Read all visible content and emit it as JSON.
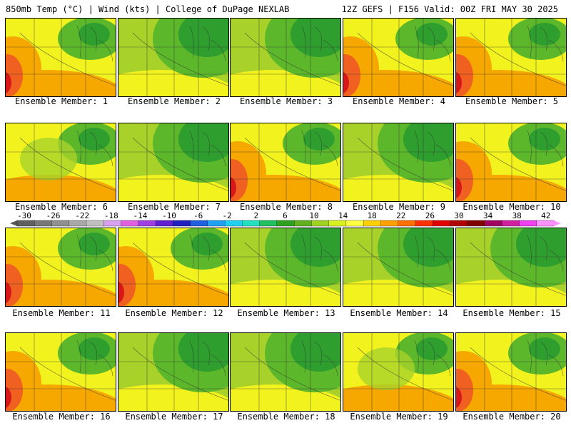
{
  "header": {
    "title_left": "850mb Temp (°C) | Wind (kts) | College of DuPage NEXLAB",
    "title_right": "12Z GEFS | F156 Valid: 00Z FRI MAY 30 2025"
  },
  "colorbar": {
    "ticks": [
      "-30",
      "-26",
      "-22",
      "-18",
      "-14",
      "-10",
      "-6",
      "-2",
      "2",
      "6",
      "10",
      "14",
      "18",
      "22",
      "26",
      "30",
      "34",
      "38",
      "42"
    ],
    "tick_values": [
      -30,
      -26,
      -22,
      -18,
      -14,
      -10,
      -6,
      -2,
      2,
      6,
      10,
      14,
      18,
      22,
      26,
      30,
      34,
      38,
      42
    ],
    "colors": [
      "#606060",
      "#787878",
      "#909090",
      "#a8a8a8",
      "#c0c0c0",
      "#d8a0f0",
      "#e060e0",
      "#a040e0",
      "#6020d0",
      "#2020c0",
      "#2060e0",
      "#20a0f0",
      "#20d0f0",
      "#20e0c0",
      "#20c060",
      "#30a020",
      "#60b020",
      "#a0d020",
      "#d8f020",
      "#ffff40",
      "#ffd000",
      "#ffa000",
      "#ff7000",
      "#ff3000",
      "#e00000",
      "#b00000",
      "#800000",
      "#a00060",
      "#d020a0",
      "#f040f0",
      "#ff90ff"
    ]
  },
  "members": [
    {
      "label": "Ensemble Member: 1"
    },
    {
      "label": "Ensemble Member: 2"
    },
    {
      "label": "Ensemble Member: 3"
    },
    {
      "label": "Ensemble Member: 4"
    },
    {
      "label": "Ensemble Member: 5"
    },
    {
      "label": "Ensemble Member: 6"
    },
    {
      "label": "Ensemble Member: 7"
    },
    {
      "label": "Ensemble Member: 8"
    },
    {
      "label": "Ensemble Member: 9"
    },
    {
      "label": "Ensemble Member: 10"
    },
    {
      "label": "Ensemble Member: 11"
    },
    {
      "label": "Ensemble Member: 12"
    },
    {
      "label": "Ensemble Member: 13"
    },
    {
      "label": "Ensemble Member: 14"
    },
    {
      "label": "Ensemble Member: 15"
    },
    {
      "label": "Ensemble Member: 16"
    },
    {
      "label": "Ensemble Member: 17"
    },
    {
      "label": "Ensemble Member: 18"
    },
    {
      "label": "Ensemble Member: 19"
    },
    {
      "label": "Ensemble Member: 20"
    }
  ],
  "map_colors": {
    "green_dark": "#2e9e2e",
    "green": "#5cb82a",
    "yellow_green": "#a8d22a",
    "yellow": "#f2f21e",
    "orange": "#f6a800",
    "red_orange": "#f06020",
    "red": "#d81818",
    "lines": "#333333"
  }
}
